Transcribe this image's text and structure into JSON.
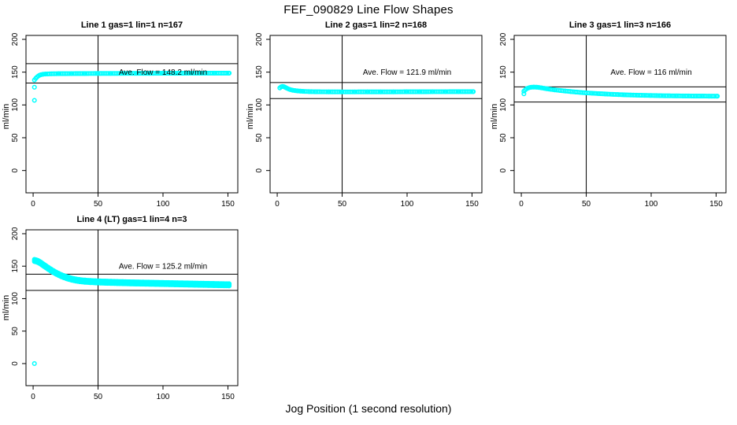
{
  "meta": {
    "title": "FEF_090829  Line Flow Shapes",
    "xlabel": "Jog Position (1 second resolution)",
    "point_color": "#00ffff",
    "line_color": "#000000",
    "background": "#ffffff"
  },
  "axes": {
    "xlim": [
      -5.5,
      157.6
    ],
    "ylim": [
      -34,
      206
    ],
    "xticks": [
      0,
      50,
      100,
      150
    ],
    "yticks": [
      0,
      50,
      100,
      150,
      200
    ],
    "ylabel": "ml/min",
    "vline_x": 50,
    "grid": false
  },
  "chart_data": [
    {
      "type": "scatter",
      "title": "Line 1 gas=1 lin=1 n=167",
      "line": "Line 1",
      "gas": 1,
      "lin": 1,
      "n": 167,
      "avg_flow": 148.2,
      "avg_label": "Ave. Flow =  148.2  ml/min",
      "avg_label_pos": {
        "x": 100,
        "y": 150
      },
      "ref_lines": [
        163.0,
        133.4
      ],
      "band": 1,
      "points": [
        [
          1,
          138
        ],
        [
          2,
          140.5
        ],
        [
          3,
          142.5
        ],
        [
          4,
          144.2
        ],
        [
          5,
          145.3
        ],
        [
          6,
          146.1
        ],
        [
          8,
          146.9
        ],
        [
          10,
          147.2
        ],
        [
          14,
          147.5
        ],
        [
          20,
          147.7
        ],
        [
          30,
          147.8
        ],
        [
          40,
          147.9
        ],
        [
          50,
          148
        ],
        [
          60,
          148
        ],
        [
          70,
          148.1
        ],
        [
          80,
          148.2
        ],
        [
          90,
          148.2
        ],
        [
          100,
          148.3
        ],
        [
          110,
          148.3
        ],
        [
          120,
          148.4
        ],
        [
          130,
          148.4
        ],
        [
          140,
          148.5
        ],
        [
          151,
          148.5
        ]
      ],
      "outliers": [
        [
          1,
          107
        ],
        [
          1,
          127
        ]
      ]
    },
    {
      "type": "scatter",
      "title": "Line 2 gas=1 lin=2 n=168",
      "line": "Line 2",
      "gas": 1,
      "lin": 2,
      "n": 168,
      "avg_flow": 121.9,
      "avg_label": "Ave. Flow =  121.9  ml/min",
      "avg_label_pos": {
        "x": 100,
        "y": 150
      },
      "ref_lines": [
        134.1,
        109.7
      ],
      "band": 1,
      "points": [
        [
          2,
          126
        ],
        [
          3,
          127.6
        ],
        [
          4,
          128.2
        ],
        [
          5,
          127.9
        ],
        [
          6,
          127
        ],
        [
          7,
          126
        ],
        [
          8,
          125
        ],
        [
          9,
          124.1
        ],
        [
          10,
          123.4
        ],
        [
          12,
          122.4
        ],
        [
          14,
          121.8
        ],
        [
          16,
          121.3
        ],
        [
          18,
          121
        ],
        [
          20,
          120.7
        ],
        [
          25,
          120.3
        ],
        [
          30,
          120.1
        ],
        [
          40,
          120
        ],
        [
          50,
          119.9
        ],
        [
          60,
          119.9
        ],
        [
          70,
          120
        ],
        [
          80,
          120
        ],
        [
          90,
          120
        ],
        [
          100,
          120.1
        ],
        [
          110,
          120.1
        ],
        [
          120,
          120.2
        ],
        [
          130,
          120.2
        ],
        [
          140,
          120.3
        ],
        [
          151,
          120.3
        ]
      ],
      "outliers": []
    },
    {
      "type": "scatter",
      "title": "Line 3 gas=1 lin=3 n=166",
      "line": "Line 3",
      "gas": 1,
      "lin": 3,
      "n": 166,
      "avg_flow": 116,
      "avg_label": "Ave. Flow =  116  ml/min",
      "avg_label_pos": {
        "x": 100,
        "y": 150
      },
      "ref_lines": [
        127.6,
        104.4
      ],
      "band": 1,
      "points": [
        [
          2,
          121
        ],
        [
          3,
          123
        ],
        [
          4,
          124.6
        ],
        [
          5,
          125.6
        ],
        [
          6,
          126.3
        ],
        [
          7,
          126.8
        ],
        [
          8,
          127
        ],
        [
          10,
          127.2
        ],
        [
          12,
          127
        ],
        [
          14,
          126.5
        ],
        [
          16,
          125.9
        ],
        [
          18,
          125.2
        ],
        [
          20,
          124.6
        ],
        [
          23,
          123.7
        ],
        [
          26,
          122.9
        ],
        [
          30,
          122
        ],
        [
          34,
          121.2
        ],
        [
          38,
          120.4
        ],
        [
          42,
          119.7
        ],
        [
          46,
          119
        ],
        [
          50,
          118.4
        ],
        [
          55,
          117.8
        ],
        [
          60,
          117.2
        ],
        [
          65,
          116.7
        ],
        [
          70,
          116.2
        ],
        [
          75,
          115.8
        ],
        [
          80,
          115.4
        ],
        [
          85,
          115.1
        ],
        [
          90,
          114.8
        ],
        [
          95,
          114.6
        ],
        [
          100,
          114.4
        ],
        [
          105,
          114.2
        ],
        [
          110,
          114
        ],
        [
          115,
          113.9
        ],
        [
          120,
          113.8
        ],
        [
          125,
          113.7
        ],
        [
          130,
          113.6
        ],
        [
          135,
          113.5
        ],
        [
          140,
          113.5
        ],
        [
          145,
          113.4
        ],
        [
          151,
          113.4
        ]
      ],
      "outliers": [
        [
          2,
          117
        ]
      ]
    },
    {
      "type": "scatter",
      "title": "Line 4 (LT) gas=1 lin=4 n=3",
      "line": "Line 4 (LT)",
      "gas": 1,
      "lin": 4,
      "n": 3,
      "avg_flow": 125.2,
      "avg_label": "Ave. Flow =  125.2  ml/min",
      "avg_label_pos": {
        "x": 100,
        "y": 150
      },
      "ref_lines": [
        137.7,
        112.7
      ],
      "band": 3,
      "points": [
        [
          1,
          158.8
        ],
        [
          2,
          158.4
        ],
        [
          3,
          157.8
        ],
        [
          4,
          156.9
        ],
        [
          5,
          155.8
        ],
        [
          6,
          154.5
        ],
        [
          7,
          153.1
        ],
        [
          8,
          151.7
        ],
        [
          9,
          150.3
        ],
        [
          10,
          148.9
        ],
        [
          12,
          146.2
        ],
        [
          14,
          143.6
        ],
        [
          16,
          141.2
        ],
        [
          18,
          139
        ],
        [
          20,
          137
        ],
        [
          22,
          135.2
        ],
        [
          24,
          133.6
        ],
        [
          26,
          132.2
        ],
        [
          28,
          131
        ],
        [
          30,
          129.9
        ],
        [
          33,
          128.6
        ],
        [
          36,
          127.7
        ],
        [
          40,
          126.9
        ],
        [
          44,
          126.3
        ],
        [
          48,
          125.9
        ],
        [
          52,
          125.6
        ],
        [
          56,
          125.3
        ],
        [
          60,
          125.1
        ],
        [
          65,
          124.8
        ],
        [
          70,
          124.6
        ],
        [
          75,
          124.3
        ],
        [
          80,
          124.1
        ],
        [
          85,
          123.9
        ],
        [
          90,
          123.7
        ],
        [
          95,
          123.5
        ],
        [
          100,
          123.3
        ],
        [
          105,
          123.1
        ],
        [
          110,
          122.9
        ],
        [
          115,
          122.7
        ],
        [
          120,
          122.5
        ],
        [
          125,
          122.3
        ],
        [
          130,
          122.1
        ],
        [
          135,
          121.9
        ],
        [
          140,
          121.7
        ],
        [
          145,
          121.5
        ],
        [
          151,
          121.3
        ]
      ],
      "outliers": [
        [
          1,
          0
        ]
      ]
    }
  ]
}
